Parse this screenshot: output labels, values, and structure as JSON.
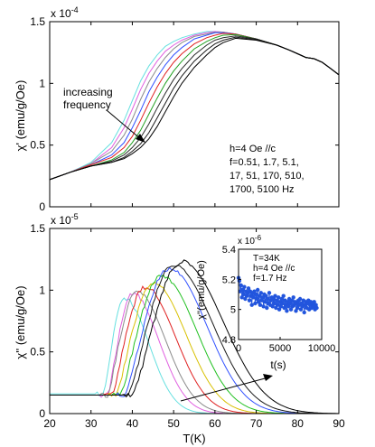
{
  "chart_data": [
    {
      "type": "line",
      "ylabel": "χ' (emu/g/Oe)",
      "y_multiplier": "x 10",
      "y_exponent": "-4",
      "xlim": [
        20,
        90
      ],
      "ylim": [
        0,
        1.5
      ],
      "yticks": [
        0,
        0.5,
        1,
        1.5
      ],
      "ytick_labels": [
        "0",
        "0.5",
        "1",
        "1.5"
      ],
      "xtick_labels_shown": false,
      "grid": false,
      "annotation_arrow": [
        "increasing",
        "frequency"
      ],
      "annotation_params": [
        "h=4 Oe //c",
        "f=0.51, 1.7, 5.1,",
        "17, 51, 170, 510,",
        "1700, 5100 Hz"
      ],
      "series_colors": [
        "#66e0e0",
        "#e060e0",
        "#8a8a8a",
        "#3050ff",
        "#e02020",
        "#20a020",
        "#2a2a2a",
        "#1a1a1a",
        "#000000"
      ],
      "series": [
        {
          "peak_t": 59.5,
          "x": [
            20,
            25,
            30,
            35,
            38,
            40,
            42,
            44,
            46,
            48,
            50,
            52,
            55,
            58,
            60,
            62,
            65,
            70,
            75,
            78,
            80,
            82,
            84,
            86,
            88,
            90
          ],
          "values": [
            0.22,
            0.28,
            0.36,
            0.52,
            0.7,
            0.86,
            1.02,
            1.14,
            1.23,
            1.3,
            1.34,
            1.37,
            1.4,
            1.42,
            1.42,
            1.415,
            1.4,
            1.36,
            1.31,
            1.27,
            1.24,
            1.21,
            1.2,
            1.17,
            1.12,
            1.07
          ]
        },
        {
          "peak_t": 60,
          "x": [
            20,
            25,
            30,
            35,
            38,
            40,
            42,
            44,
            46,
            48,
            50,
            52,
            55,
            58,
            60,
            62,
            65,
            70,
            75,
            78,
            80,
            82,
            84,
            86,
            88,
            90
          ],
          "values": [
            0.22,
            0.28,
            0.35,
            0.48,
            0.64,
            0.79,
            0.95,
            1.08,
            1.18,
            1.26,
            1.31,
            1.35,
            1.39,
            1.41,
            1.42,
            1.415,
            1.4,
            1.36,
            1.31,
            1.27,
            1.24,
            1.21,
            1.2,
            1.17,
            1.12,
            1.07
          ]
        },
        {
          "peak_t": 60.5,
          "x": [
            20,
            25,
            30,
            35,
            38,
            40,
            42,
            44,
            46,
            48,
            50,
            52,
            55,
            58,
            60,
            62,
            65,
            70,
            75,
            78,
            80,
            82,
            84,
            86,
            88,
            90
          ],
          "values": [
            0.22,
            0.28,
            0.35,
            0.45,
            0.58,
            0.71,
            0.87,
            1.01,
            1.12,
            1.21,
            1.28,
            1.33,
            1.38,
            1.4,
            1.415,
            1.415,
            1.4,
            1.36,
            1.31,
            1.27,
            1.24,
            1.21,
            1.2,
            1.17,
            1.12,
            1.07
          ]
        },
        {
          "peak_t": 61,
          "x": [
            20,
            25,
            30,
            35,
            38,
            40,
            42,
            44,
            46,
            48,
            50,
            52,
            55,
            58,
            60,
            62,
            65,
            70,
            75,
            78,
            80,
            82,
            84,
            86,
            88,
            90
          ],
          "values": [
            0.22,
            0.28,
            0.34,
            0.42,
            0.52,
            0.64,
            0.78,
            0.93,
            1.05,
            1.15,
            1.23,
            1.29,
            1.36,
            1.39,
            1.41,
            1.41,
            1.4,
            1.36,
            1.31,
            1.27,
            1.24,
            1.21,
            1.2,
            1.17,
            1.12,
            1.07
          ]
        },
        {
          "peak_t": 62,
          "x": [
            20,
            25,
            30,
            35,
            38,
            40,
            42,
            44,
            46,
            48,
            50,
            52,
            55,
            58,
            60,
            62,
            65,
            70,
            75,
            78,
            80,
            82,
            84,
            86,
            88,
            90
          ],
          "values": [
            0.22,
            0.28,
            0.34,
            0.4,
            0.48,
            0.57,
            0.7,
            0.84,
            0.97,
            1.08,
            1.17,
            1.24,
            1.32,
            1.37,
            1.39,
            1.405,
            1.4,
            1.36,
            1.31,
            1.27,
            1.24,
            1.21,
            1.2,
            1.17,
            1.12,
            1.07
          ]
        },
        {
          "peak_t": 63,
          "x": [
            20,
            25,
            30,
            35,
            38,
            40,
            42,
            44,
            46,
            48,
            50,
            52,
            55,
            58,
            60,
            62,
            65,
            70,
            75,
            78,
            80,
            82,
            84,
            86,
            88,
            90
          ],
          "values": [
            0.22,
            0.28,
            0.33,
            0.38,
            0.44,
            0.52,
            0.62,
            0.75,
            0.88,
            1.0,
            1.1,
            1.18,
            1.28,
            1.34,
            1.37,
            1.39,
            1.395,
            1.36,
            1.31,
            1.27,
            1.24,
            1.21,
            1.2,
            1.17,
            1.12,
            1.07
          ]
        },
        {
          "peak_t": 64,
          "x": [
            20,
            25,
            30,
            35,
            38,
            40,
            42,
            44,
            46,
            48,
            50,
            52,
            55,
            58,
            60,
            62,
            65,
            70,
            75,
            78,
            80,
            82,
            84,
            86,
            88,
            90
          ],
          "values": [
            0.22,
            0.28,
            0.33,
            0.37,
            0.42,
            0.48,
            0.56,
            0.67,
            0.8,
            0.92,
            1.03,
            1.12,
            1.23,
            1.31,
            1.35,
            1.37,
            1.385,
            1.36,
            1.31,
            1.27,
            1.24,
            1.21,
            1.2,
            1.17,
            1.12,
            1.07
          ]
        },
        {
          "peak_t": 65,
          "x": [
            20,
            25,
            30,
            35,
            38,
            40,
            42,
            44,
            46,
            48,
            50,
            52,
            55,
            58,
            60,
            62,
            65,
            70,
            75,
            78,
            80,
            82,
            84,
            86,
            88,
            90
          ],
          "values": [
            0.22,
            0.28,
            0.33,
            0.36,
            0.4,
            0.45,
            0.51,
            0.6,
            0.72,
            0.84,
            0.96,
            1.06,
            1.18,
            1.27,
            1.32,
            1.35,
            1.375,
            1.355,
            1.31,
            1.27,
            1.24,
            1.21,
            1.2,
            1.17,
            1.12,
            1.07
          ]
        },
        {
          "peak_t": 66,
          "x": [
            20,
            25,
            30,
            35,
            38,
            40,
            42,
            44,
            46,
            48,
            50,
            52,
            55,
            58,
            60,
            62,
            65,
            70,
            75,
            78,
            80,
            82,
            84,
            86,
            88,
            90
          ],
          "values": [
            0.22,
            0.28,
            0.33,
            0.36,
            0.39,
            0.43,
            0.48,
            0.55,
            0.65,
            0.77,
            0.89,
            1.0,
            1.13,
            1.23,
            1.29,
            1.33,
            1.365,
            1.35,
            1.31,
            1.27,
            1.24,
            1.21,
            1.2,
            1.17,
            1.12,
            1.07
          ]
        }
      ]
    },
    {
      "type": "line",
      "xlabel": "T(K)",
      "ylabel": "χ'' (emu/g/Oe)",
      "y_multiplier": "x 10",
      "y_exponent": "-5",
      "xlim": [
        20,
        90
      ],
      "ylim": [
        0,
        1.5
      ],
      "xticks": [
        20,
        30,
        40,
        50,
        60,
        70,
        80,
        90
      ],
      "xtick_labels": [
        "20",
        "30",
        "40",
        "50",
        "60",
        "70",
        "80",
        "90"
      ],
      "yticks": [
        0,
        0.5,
        1,
        1.5
      ],
      "ytick_labels": [
        "0",
        "0.5",
        "1",
        "1.5"
      ],
      "grid": false,
      "series_colors": [
        "#66e0e0",
        "#e060e0",
        "#8a8a8a",
        "#e02020",
        "#d8c000",
        "#20c020",
        "#3050ff",
        "#1a1a1a",
        "#000000"
      ],
      "series": [
        {
          "peak_t": 38,
          "amplitude": 0.94,
          "baseline": 0.16,
          "x0": 33,
          "width_rise": 4.0,
          "width_fall": 6.0
        },
        {
          "peak_t": 40,
          "amplitude": 0.97,
          "baseline": 0.15,
          "x0": 34,
          "width_rise": 4.5,
          "width_fall": 6.5
        },
        {
          "peak_t": 41,
          "amplitude": 0.99,
          "baseline": 0.15,
          "x0": 34,
          "width_rise": 5.0,
          "width_fall": 7.0
        },
        {
          "peak_t": 43,
          "amplitude": 1.02,
          "baseline": 0.15,
          "x0": 35,
          "width_rise": 5.5,
          "width_fall": 7.5
        },
        {
          "peak_t": 45,
          "amplitude": 1.06,
          "baseline": 0.15,
          "x0": 36,
          "width_rise": 6.0,
          "width_fall": 8.0
        },
        {
          "peak_t": 47,
          "amplitude": 1.12,
          "baseline": 0.15,
          "x0": 37,
          "width_rise": 6.5,
          "width_fall": 8.5
        },
        {
          "peak_t": 49,
          "amplitude": 1.18,
          "baseline": 0.15,
          "x0": 38,
          "width_rise": 7.0,
          "width_fall": 9.0
        },
        {
          "peak_t": 50,
          "amplitude": 1.2,
          "baseline": 0.15,
          "x0": 39,
          "width_rise": 7.5,
          "width_fall": 9.5
        },
        {
          "peak_t": 52,
          "amplitude": 1.23,
          "baseline": 0.15,
          "x0": 40,
          "width_rise": 8.0,
          "width_fall": 10.0
        }
      ]
    },
    {
      "type": "scatter",
      "xlabel": "t(s)",
      "ylabel": "χ''(emu/g/Oe)",
      "y_multiplier": "x 10",
      "y_exponent": "-6",
      "xlim": [
        0,
        10000
      ],
      "ylim": [
        4.8,
        5.4
      ],
      "xticks": [
        0,
        5000,
        10000
      ],
      "xtick_labels": [
        "0",
        "5000",
        "10000"
      ],
      "yticks": [
        4.8,
        5.0,
        5.2,
        5.4
      ],
      "ytick_labels": [
        "4.8",
        "5",
        "5.2",
        "5.4"
      ],
      "annotations": [
        "T=34K",
        "h=4 Oe //c",
        "f=1.7 Hz"
      ],
      "marker_color": "#2255dd",
      "x": [
        0,
        100,
        200,
        300,
        400,
        500,
        600,
        700,
        800,
        900,
        1000,
        1100,
        1200,
        1300,
        1400,
        1500,
        1600,
        1700,
        1800,
        1900,
        2000,
        2100,
        2200,
        2300,
        2400,
        2500,
        2600,
        2700,
        2800,
        2900,
        3000,
        3100,
        3200,
        3300,
        3400,
        3500,
        3600,
        3700,
        3800,
        3900,
        4000,
        4100,
        4200,
        4300,
        4400,
        4500,
        4600,
        4700,
        4800,
        4900,
        5000,
        5100,
        5200,
        5300,
        5400,
        5500,
        5600,
        5700,
        5800,
        5900,
        6000,
        6100,
        6200,
        6300,
        6400,
        6500,
        6600,
        6700,
        6800,
        6900,
        7000,
        7100,
        7200,
        7300,
        7400,
        7500,
        7600,
        7700,
        7800,
        7900,
        8000,
        8100,
        8200,
        8300,
        8400,
        8500,
        8600,
        8700,
        8800,
        8900,
        9000,
        9100,
        9200,
        9300,
        9400
      ],
      "values": [
        5.21,
        5.19,
        5.12,
        5.16,
        5.08,
        5.13,
        5.1,
        5.15,
        5.07,
        5.12,
        5.09,
        5.11,
        5.14,
        5.06,
        5.12,
        5.09,
        5.03,
        5.11,
        5.08,
        5.12,
        5.04,
        5.1,
        5.07,
        5.13,
        5.05,
        5.09,
        5.03,
        5.11,
        5.06,
        5.08,
        5.02,
        5.1,
        5.05,
        5.09,
        5.01,
        5.07,
        5.04,
        5.11,
        5.03,
        5.06,
        5.08,
        5.02,
        5.07,
        5.04,
        5.09,
        5.01,
        5.06,
        5.03,
        5.08,
        5.0,
        5.05,
        5.02,
        5.07,
        5.04,
        5.09,
        5.01,
        5.06,
        5.03,
        4.99,
        5.05,
        5.02,
        5.07,
        5.04,
        5.0,
        5.06,
        5.02,
        5.08,
        5.03,
        5.05,
        4.99,
        5.04,
        5.01,
        5.06,
        5.03,
        5.07,
        5.0,
        5.04,
        5.02,
        5.06,
        4.98,
        5.03,
        5.05,
        5.01,
        5.04,
        5.06,
        5.0,
        5.03,
        5.05,
        5.01,
        5.04,
        5.02,
        5.05,
        5.0,
        5.03,
        5.01
      ]
    }
  ]
}
